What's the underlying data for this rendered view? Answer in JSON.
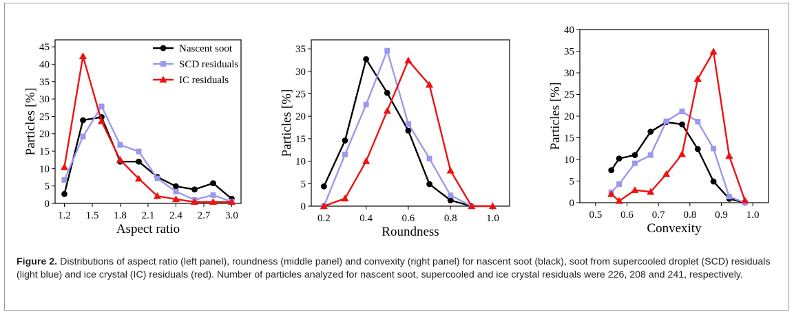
{
  "chart_data": [
    {
      "type": "line",
      "xlabel": "Aspect ratio",
      "ylabel": "Particles [%]",
      "xlim": [
        1.1,
        3.1
      ],
      "ylim": [
        0,
        47
      ],
      "xticks": [
        "1.2",
        "1.5",
        "1.8",
        "2.1",
        "2.4",
        "2.7",
        "3.0"
      ],
      "xtick_values": [
        1.2,
        1.5,
        1.8,
        2.1,
        2.4,
        2.7,
        3.0
      ],
      "yticks": [
        "0",
        "5",
        "10",
        "15",
        "20",
        "25",
        "30",
        "35",
        "40",
        "45"
      ],
      "ytick_values": [
        0,
        5,
        10,
        15,
        20,
        25,
        30,
        35,
        40,
        45
      ],
      "legend": "top-right",
      "series": [
        {
          "name": "Nascent soot",
          "color": "#000000",
          "marker": "circle",
          "x": [
            1.2,
            1.4,
            1.6,
            1.8,
            2.0,
            2.2,
            2.4,
            2.6,
            2.8,
            3.0
          ],
          "y": [
            2.7,
            23.9,
            24.8,
            12.0,
            12.0,
            7.6,
            4.9,
            4.0,
            5.8,
            1.3
          ]
        },
        {
          "name": "SCD residuals",
          "color": "#9999ee",
          "marker": "square",
          "x": [
            1.2,
            1.4,
            1.6,
            1.8,
            2.0,
            2.2,
            2.4,
            2.6,
            2.8,
            3.0
          ],
          "y": [
            6.7,
            19.2,
            27.9,
            16.8,
            14.9,
            7.2,
            3.4,
            1.0,
            2.4,
            0.5
          ]
        },
        {
          "name": "IC residuals",
          "color": "#ee1111",
          "marker": "triangle",
          "x": [
            1.2,
            1.4,
            1.6,
            1.8,
            2.0,
            2.2,
            2.4,
            2.6,
            2.8,
            3.0
          ],
          "y": [
            10.4,
            42.3,
            23.6,
            12.5,
            7.1,
            2.1,
            1.2,
            0.4,
            0.4,
            0.4
          ]
        }
      ]
    },
    {
      "type": "line",
      "xlabel": "Roundness",
      "ylabel": "Particles [%]",
      "xlim": [
        0.14,
        1.08
      ],
      "ylim": [
        0,
        37
      ],
      "xticks": [
        "0.2",
        "0.4",
        "0.6",
        "0.8",
        "1.0"
      ],
      "xtick_values": [
        0.2,
        0.4,
        0.6,
        0.8,
        1.0
      ],
      "yticks": [
        "0",
        "5",
        "10",
        "15",
        "20",
        "25",
        "30",
        "35"
      ],
      "ytick_values": [
        0,
        5,
        10,
        15,
        20,
        25,
        30,
        35
      ],
      "series": [
        {
          "name": "Nascent soot",
          "color": "#000000",
          "marker": "circle",
          "x": [
            0.2,
            0.3,
            0.4,
            0.5,
            0.6,
            0.7,
            0.8,
            0.9
          ],
          "y": [
            4.4,
            14.6,
            32.7,
            25.2,
            16.8,
            4.9,
            1.3,
            0.0
          ]
        },
        {
          "name": "SCD residuals",
          "color": "#9999ee",
          "marker": "square",
          "x": [
            0.2,
            0.3,
            0.4,
            0.5,
            0.6,
            0.7,
            0.8,
            0.9
          ],
          "y": [
            0.0,
            11.5,
            22.6,
            34.6,
            18.3,
            10.6,
            2.4,
            0.0
          ]
        },
        {
          "name": "IC residuals",
          "color": "#ee1111",
          "marker": "triangle",
          "x": [
            0.2,
            0.3,
            0.4,
            0.5,
            0.6,
            0.7,
            0.8,
            0.9,
            1.0
          ],
          "y": [
            0.0,
            1.7,
            10.0,
            21.2,
            32.4,
            27.0,
            7.9,
            0.0,
            0.0
          ]
        }
      ]
    },
    {
      "type": "line",
      "xlabel": "Convexity",
      "ylabel": "Particles [%]",
      "xlim": [
        0.45,
        1.05
      ],
      "ylim": [
        0,
        40
      ],
      "xticks": [
        "0.5",
        "0.6",
        "0.7",
        "0.8",
        "0.9",
        "1.0"
      ],
      "xtick_values": [
        0.5,
        0.6,
        0.7,
        0.8,
        0.9,
        1.0
      ],
      "yticks": [
        "0",
        "5",
        "10",
        "15",
        "20",
        "25",
        "30",
        "35",
        "40"
      ],
      "ytick_values": [
        0,
        5,
        10,
        15,
        20,
        25,
        30,
        35,
        40
      ],
      "series": [
        {
          "name": "Nascent soot",
          "color": "#000000",
          "marker": "circle",
          "x": [
            0.55,
            0.575,
            0.625,
            0.675,
            0.725,
            0.775,
            0.825,
            0.875,
            0.925,
            0.975
          ],
          "y": [
            7.5,
            10.2,
            11.0,
            16.4,
            18.6,
            18.1,
            12.4,
            4.9,
            0.9,
            0.0
          ]
        },
        {
          "name": "SCD residuals",
          "color": "#9999ee",
          "marker": "square",
          "x": [
            0.55,
            0.575,
            0.625,
            0.675,
            0.725,
            0.775,
            0.825,
            0.875,
            0.925,
            0.975
          ],
          "y": [
            2.4,
            4.3,
            9.1,
            11.0,
            18.8,
            21.1,
            18.7,
            12.5,
            1.4,
            0.0
          ]
        },
        {
          "name": "IC residuals",
          "color": "#ee1111",
          "marker": "triangle",
          "x": [
            0.55,
            0.575,
            0.625,
            0.675,
            0.725,
            0.775,
            0.825,
            0.875,
            0.925,
            0.975
          ],
          "y": [
            2.0,
            0.4,
            2.9,
            2.5,
            6.6,
            11.2,
            28.6,
            34.9,
            10.8,
            0.5
          ]
        }
      ]
    }
  ],
  "caption": {
    "label": "Figure 2.",
    "text": "Distributions of aspect ratio (left panel), roundness (middle panel) and convexity (right panel) for nascent soot (black), soot from supercooled droplet (SCD) residuals (light blue) and ice crystal (IC) residuals (red). Number of particles analyzed for nascent soot, supercooled and ice crystal residuals were 226, 208 and 241, respectively."
  }
}
